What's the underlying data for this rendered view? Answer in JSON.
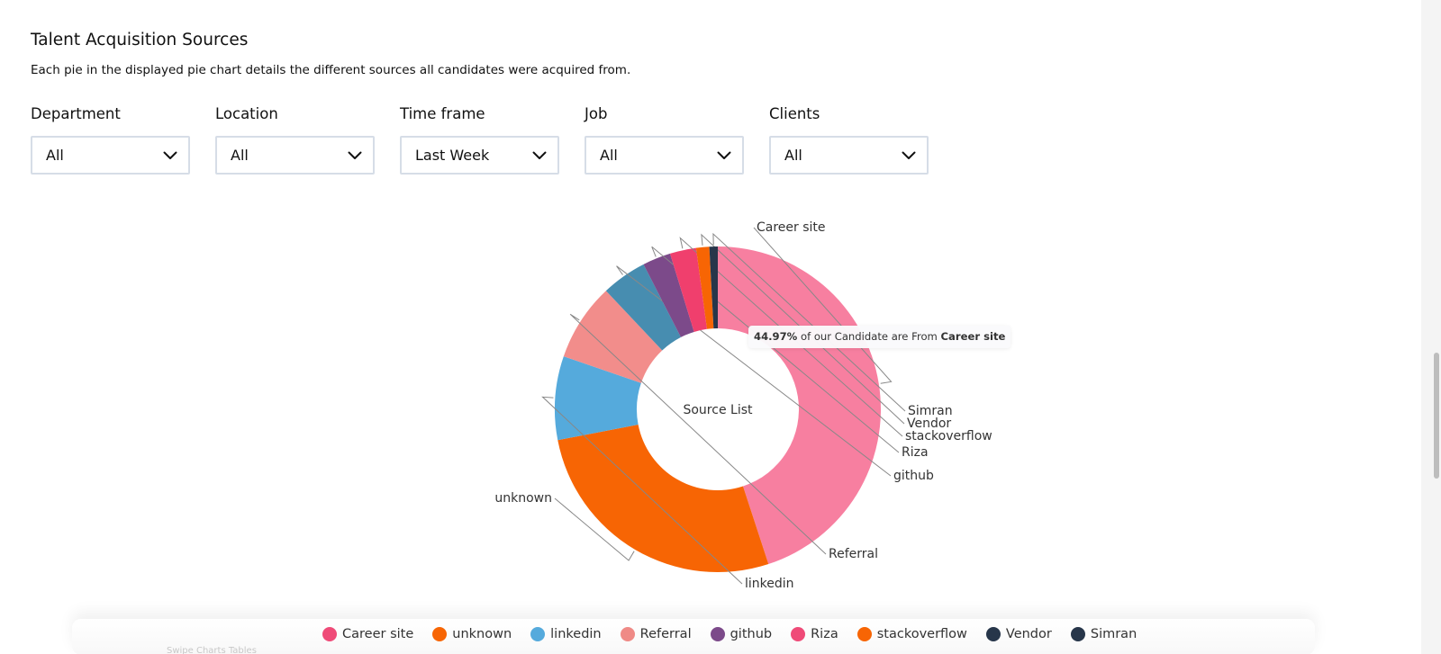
{
  "section": {
    "title": "Talent Acquisition Sources",
    "description": "Each pie in the displayed pie chart details the different sources all candidates were acquired from."
  },
  "filters": [
    {
      "label": "Department",
      "value": "All"
    },
    {
      "label": "Location",
      "value": "All"
    },
    {
      "label": "Time frame",
      "value": "Last Week"
    },
    {
      "label": "Job",
      "value": "All"
    },
    {
      "label": "Clients",
      "value": "All"
    }
  ],
  "tooltip": {
    "percent": "44.97%",
    "middle": " of our Candidate are From ",
    "source": "Career site"
  },
  "chart_data": {
    "type": "pie",
    "variant": "donut",
    "center_label": "Source List",
    "legend_position": "bottom",
    "unit": "percent",
    "slices": [
      {
        "label": "Career site",
        "value": 44.97,
        "color": "#f77fa0",
        "legend_color": "#ef4b78"
      },
      {
        "label": "unknown",
        "value": 27.0,
        "color": "#f76504",
        "legend_color": "#f76504"
      },
      {
        "label": "linkedin",
        "value": 8.3,
        "color": "#55aadc",
        "legend_color": "#55aadc"
      },
      {
        "label": "Referral",
        "value": 7.7,
        "color": "#f28d8b",
        "legend_color": "#ef8a86"
      },
      {
        "label": "github",
        "value": 4.5,
        "color": "#478db0",
        "legend_color": "#7c4a8a"
      },
      {
        "label": "Riza",
        "value": 2.8,
        "color": "#7c4a8a",
        "legend_color": "#ef4b78"
      },
      {
        "label": "stackoverflow",
        "value": 2.6,
        "color": "#f03f6d",
        "legend_color": "#f76504"
      },
      {
        "label": "Vendor",
        "value": 1.3,
        "color": "#f76504",
        "legend_color": "#27364a"
      },
      {
        "label": "Simran",
        "value": 0.83,
        "color": "#27364a",
        "legend_color": "#27364a"
      }
    ]
  },
  "footer": {
    "faint_text": "Swipe Charts Tables"
  }
}
